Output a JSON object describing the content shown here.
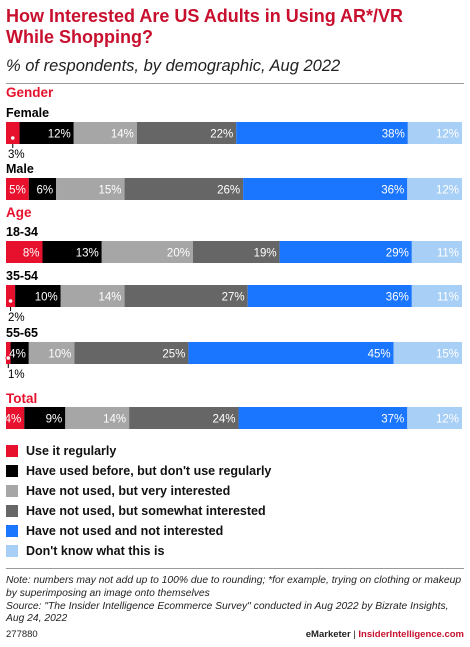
{
  "title": "How Interested Are US Adults in Using AR*/VR While Shopping?",
  "subtitle": "% of respondents, by demographic, Aug 2022",
  "chart_data": {
    "type": "bar",
    "stacked": true,
    "orientation": "horizontal",
    "colors": [
      "#e8112d",
      "#000000",
      "#a6a6a6",
      "#666666",
      "#1a75ff",
      "#a8cff5"
    ],
    "legend": [
      "Use it regularly",
      "Have used before, but don't use regularly",
      "Have not used, but very interested",
      "Have not used, but somewhat interested",
      "Have not used and not interested",
      "Don't know what this is"
    ],
    "groups": [
      {
        "label": "Gender",
        "rows": [
          {
            "label": "Female",
            "values": [
              3,
              12,
              14,
              22,
              38,
              12
            ]
          },
          {
            "label": "Male",
            "values": [
              5,
              6,
              15,
              26,
              36,
              12
            ]
          }
        ]
      },
      {
        "label": "Age",
        "rows": [
          {
            "label": "18-34",
            "values": [
              8,
              13,
              20,
              19,
              29,
              11
            ]
          },
          {
            "label": "35-54",
            "values": [
              2,
              10,
              14,
              27,
              36,
              11
            ]
          },
          {
            "label": "55-65",
            "values": [
              1,
              4,
              10,
              25,
              45,
              15
            ]
          }
        ]
      },
      {
        "label": "Total",
        "rows": [
          {
            "label": "",
            "values": [
              4,
              9,
              14,
              24,
              37,
              12
            ]
          }
        ]
      }
    ]
  },
  "note": "Note: numbers may not add up to 100% due to rounding; *for example, trying on clothing or makeup by superimposing an image onto themselves",
  "source": "Source: \"The Insider Intelligence Ecommerce Survey\" conducted in Aug 2022 by Bizrate Insights, Aug 24, 2022",
  "footer": {
    "chart_id": "277880",
    "brand_left": "eMarketer",
    "divider": "|",
    "brand_right": "InsiderIntelligence.com"
  }
}
